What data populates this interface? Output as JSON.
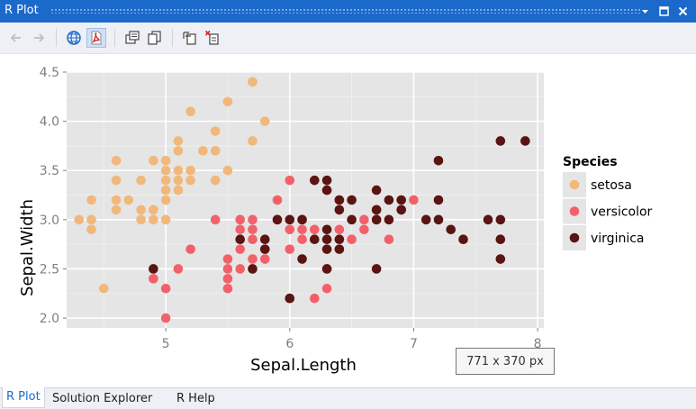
{
  "window": {
    "title": "R Plot",
    "controls": [
      "dropdown-icon",
      "maximize-icon",
      "close-icon"
    ]
  },
  "toolbar": {
    "buttons": [
      {
        "name": "back-button",
        "icon": "arrow-left-icon"
      },
      {
        "name": "forward-button",
        "icon": "arrow-right-icon"
      },
      {
        "name": "export-web-button",
        "icon": "globe-icon"
      },
      {
        "name": "export-pdf-button",
        "icon": "pdf-icon"
      },
      {
        "name": "copy-bitmap-button",
        "icon": "copy-bitmap-icon"
      },
      {
        "name": "copy-metafile-button",
        "icon": "copy-metafile-icon"
      },
      {
        "name": "remove-plot-button",
        "icon": "remove-plot-icon"
      },
      {
        "name": "clear-plots-button",
        "icon": "clear-plots-icon"
      }
    ]
  },
  "size_tooltip": "771  x  370  px",
  "tabs": [
    {
      "label": "R Plot",
      "active": true
    },
    {
      "label": "Solution Explorer",
      "active": false
    },
    {
      "label": "R Help",
      "active": false
    }
  ],
  "chart_data": {
    "type": "scatter",
    "title": "",
    "xlabel": "Sepal.Length",
    "ylabel": "Sepal.Width",
    "xlim": [
      4.2,
      8.05
    ],
    "ylim": [
      1.9,
      4.5
    ],
    "xticks": [
      5,
      6,
      7,
      8
    ],
    "yticks": [
      2.0,
      2.5,
      3.0,
      3.5,
      4.0,
      4.5
    ],
    "ytick_labels": [
      "2.0",
      "2.5",
      "3.0",
      "3.5",
      "4.0",
      "4.5"
    ],
    "grid": true,
    "background": "#e5e5e5",
    "legend": {
      "title": "Species",
      "position": "right"
    },
    "series": [
      {
        "name": "setosa",
        "color": "#f0b87a",
        "points": [
          [
            4.3,
            3.0
          ],
          [
            4.4,
            2.9
          ],
          [
            4.4,
            3.0
          ],
          [
            4.4,
            3.2
          ],
          [
            4.5,
            2.3
          ],
          [
            4.6,
            3.1
          ],
          [
            4.6,
            3.2
          ],
          [
            4.6,
            3.4
          ],
          [
            4.6,
            3.6
          ],
          [
            4.7,
            3.2
          ],
          [
            4.8,
            3.0
          ],
          [
            4.8,
            3.1
          ],
          [
            4.8,
            3.4
          ],
          [
            4.9,
            3.0
          ],
          [
            4.9,
            3.1
          ],
          [
            4.9,
            3.6
          ],
          [
            5.0,
            3.0
          ],
          [
            5.0,
            3.2
          ],
          [
            5.0,
            3.3
          ],
          [
            5.0,
            3.4
          ],
          [
            5.0,
            3.5
          ],
          [
            5.0,
            3.6
          ],
          [
            5.1,
            3.3
          ],
          [
            5.1,
            3.4
          ],
          [
            5.1,
            3.5
          ],
          [
            5.1,
            3.7
          ],
          [
            5.1,
            3.8
          ],
          [
            5.2,
            3.4
          ],
          [
            5.2,
            3.5
          ],
          [
            5.2,
            4.1
          ],
          [
            5.3,
            3.7
          ],
          [
            5.4,
            3.4
          ],
          [
            5.4,
            3.7
          ],
          [
            5.4,
            3.9
          ],
          [
            5.5,
            3.5
          ],
          [
            5.5,
            4.2
          ],
          [
            5.7,
            3.8
          ],
          [
            5.7,
            4.4
          ],
          [
            5.8,
            4.0
          ]
        ]
      },
      {
        "name": "versicolor",
        "color": "#f2616a",
        "points": [
          [
            4.9,
            2.4
          ],
          [
            5.0,
            2.0
          ],
          [
            5.0,
            2.3
          ],
          [
            5.1,
            2.5
          ],
          [
            5.2,
            2.7
          ],
          [
            5.4,
            3.0
          ],
          [
            5.5,
            2.3
          ],
          [
            5.5,
            2.4
          ],
          [
            5.5,
            2.5
          ],
          [
            5.5,
            2.6
          ],
          [
            5.6,
            2.5
          ],
          [
            5.6,
            2.7
          ],
          [
            5.6,
            2.9
          ],
          [
            5.6,
            3.0
          ],
          [
            5.7,
            2.6
          ],
          [
            5.7,
            2.8
          ],
          [
            5.7,
            2.9
          ],
          [
            5.7,
            3.0
          ],
          [
            5.8,
            2.6
          ],
          [
            5.8,
            2.7
          ],
          [
            5.9,
            3.0
          ],
          [
            5.9,
            3.2
          ],
          [
            6.0,
            2.2
          ],
          [
            6.0,
            2.7
          ],
          [
            6.0,
            2.9
          ],
          [
            6.0,
            3.4
          ],
          [
            6.1,
            2.8
          ],
          [
            6.1,
            2.9
          ],
          [
            6.1,
            3.0
          ],
          [
            6.2,
            2.2
          ],
          [
            6.2,
            2.9
          ],
          [
            6.3,
            2.3
          ],
          [
            6.3,
            2.5
          ],
          [
            6.3,
            3.3
          ],
          [
            6.4,
            2.9
          ],
          [
            6.4,
            3.2
          ],
          [
            6.5,
            2.8
          ],
          [
            6.6,
            2.9
          ],
          [
            6.6,
            3.0
          ],
          [
            6.7,
            3.0
          ],
          [
            6.7,
            3.1
          ],
          [
            6.8,
            2.8
          ],
          [
            6.9,
            3.1
          ],
          [
            7.0,
            3.2
          ]
        ]
      },
      {
        "name": "virginica",
        "color": "#5a1412",
        "points": [
          [
            4.9,
            2.5
          ],
          [
            5.6,
            2.8
          ],
          [
            5.7,
            2.5
          ],
          [
            5.8,
            2.7
          ],
          [
            5.8,
            2.8
          ],
          [
            5.9,
            3.0
          ],
          [
            6.0,
            2.2
          ],
          [
            6.0,
            3.0
          ],
          [
            6.1,
            2.6
          ],
          [
            6.1,
            3.0
          ],
          [
            6.2,
            2.8
          ],
          [
            6.2,
            3.4
          ],
          [
            6.3,
            2.5
          ],
          [
            6.3,
            2.7
          ],
          [
            6.3,
            2.8
          ],
          [
            6.3,
            2.9
          ],
          [
            6.3,
            3.3
          ],
          [
            6.3,
            3.4
          ],
          [
            6.4,
            2.7
          ],
          [
            6.4,
            2.8
          ],
          [
            6.4,
            3.1
          ],
          [
            6.4,
            3.2
          ],
          [
            6.5,
            3.0
          ],
          [
            6.5,
            3.2
          ],
          [
            6.7,
            2.5
          ],
          [
            6.7,
            3.0
          ],
          [
            6.7,
            3.1
          ],
          [
            6.7,
            3.3
          ],
          [
            6.8,
            3.0
          ],
          [
            6.8,
            3.2
          ],
          [
            6.9,
            3.1
          ],
          [
            6.9,
            3.2
          ],
          [
            7.1,
            3.0
          ],
          [
            7.2,
            3.0
          ],
          [
            7.2,
            3.2
          ],
          [
            7.2,
            3.6
          ],
          [
            7.3,
            2.9
          ],
          [
            7.4,
            2.8
          ],
          [
            7.6,
            3.0
          ],
          [
            7.7,
            2.6
          ],
          [
            7.7,
            2.8
          ],
          [
            7.7,
            3.0
          ],
          [
            7.7,
            3.8
          ],
          [
            7.9,
            3.8
          ]
        ]
      }
    ]
  }
}
